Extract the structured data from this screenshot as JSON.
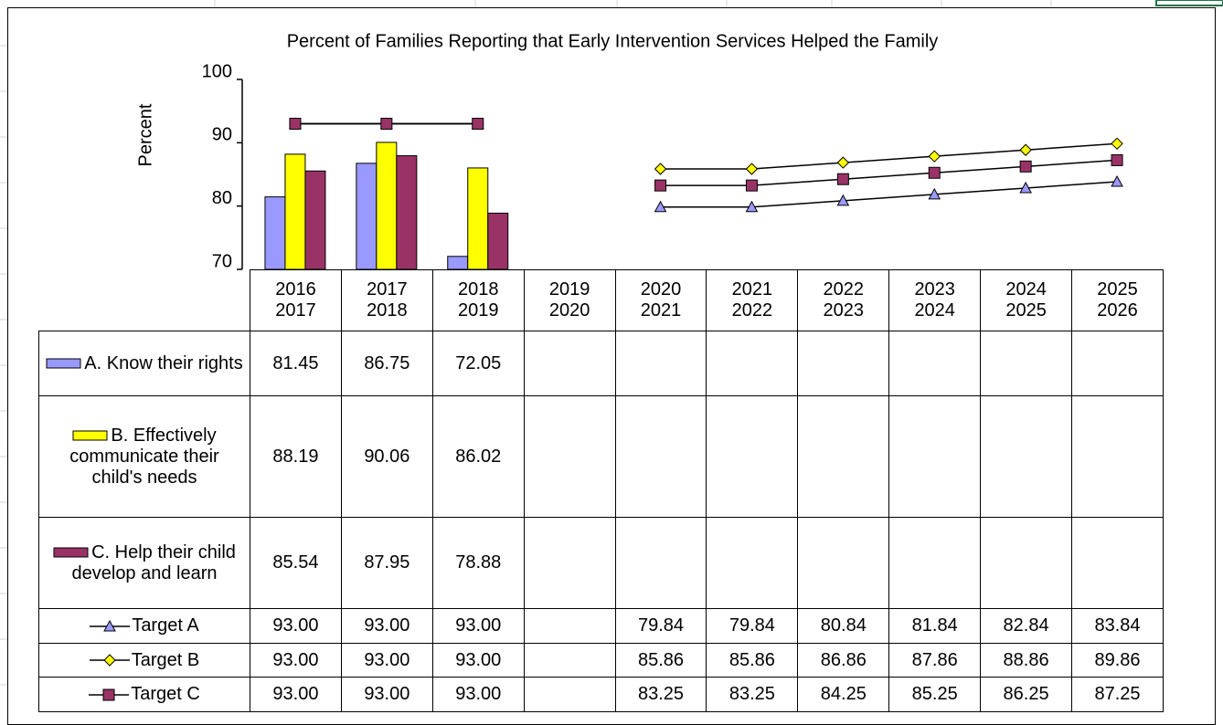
{
  "chart_data": {
    "type": "bar",
    "title": "Percent of Families Reporting that Early Intervention Services Helped the Family",
    "y_label": "Percent",
    "categories": [
      "2016\n2017",
      "2017\n2018",
      "2018\n2019",
      "2019\n2020",
      "2020\n2021",
      "2021\n2022",
      "2022\n2023",
      "2023\n2024",
      "2024\n2025",
      "2025\n2026"
    ],
    "ylim": [
      70,
      100
    ],
    "yticks": [
      70,
      80,
      90,
      100
    ],
    "series": [
      {
        "name": "A. Know their rights",
        "type": "bar",
        "color": "#9999ff",
        "values": [
          81.45,
          86.75,
          72.05,
          null,
          null,
          null,
          null,
          null,
          null,
          null
        ]
      },
      {
        "name": "B. Effectively communicate their child's needs",
        "type": "bar",
        "color": "#ffff00",
        "values": [
          88.19,
          90.06,
          86.02,
          null,
          null,
          null,
          null,
          null,
          null,
          null
        ]
      },
      {
        "name": "C. Help their child develop and learn",
        "type": "bar",
        "color": "#993366",
        "values": [
          85.54,
          87.95,
          78.88,
          null,
          null,
          null,
          null,
          null,
          null,
          null
        ]
      },
      {
        "name": "Target A",
        "type": "line",
        "marker": "triangle",
        "color": "#9999ff",
        "values": [
          93,
          93,
          93,
          null,
          79.84,
          79.84,
          80.84,
          81.84,
          82.84,
          83.84
        ],
        "value_labels": [
          "93.00",
          "93.00",
          "93.00",
          null,
          "79.84",
          "79.84",
          "80.84",
          "81.84",
          "82.84",
          "83.84"
        ]
      },
      {
        "name": "Target B",
        "type": "line",
        "marker": "diamond",
        "color": "#ffff00",
        "values": [
          93,
          93,
          93,
          null,
          85.86,
          85.86,
          86.86,
          87.86,
          88.86,
          89.86
        ],
        "value_labels": [
          "93.00",
          "93.00",
          "93.00",
          null,
          "85.86",
          "85.86",
          "86.86",
          "87.86",
          "88.86",
          "89.86"
        ]
      },
      {
        "name": "Target C",
        "type": "line",
        "marker": "square",
        "color": "#993366",
        "values": [
          93,
          93,
          93,
          null,
          83.25,
          83.25,
          84.25,
          85.25,
          86.25,
          87.25
        ],
        "value_labels": [
          "93.00",
          "93.00",
          "93.00",
          null,
          "83.25",
          "83.25",
          "84.25",
          "85.25",
          "86.25",
          "87.25"
        ]
      }
    ]
  }
}
